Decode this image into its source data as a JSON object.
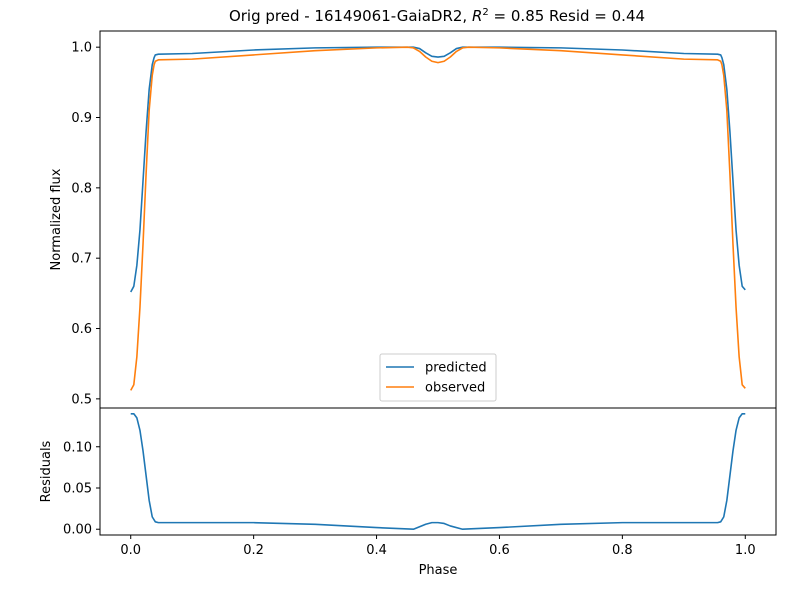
{
  "chart_data": [
    {
      "type": "line",
      "title_prefix": "Orig pred - 16149061-GaiaDR2, ",
      "title_r2_symbol": "R",
      "title_r2_exp": "2",
      "title_r2_value": " = 0.85 Resid = 0.44",
      "xlabel": "",
      "ylabel": "Normalized flux",
      "xlim": [
        -0.05,
        1.05
      ],
      "ylim": [
        0.487,
        1.023
      ],
      "yticks": [
        0.5,
        0.6,
        0.7,
        0.8,
        0.9,
        1.0
      ],
      "ytick_labels": [
        "0.5",
        "0.6",
        "0.7",
        "0.8",
        "0.9",
        "1.0"
      ],
      "legend": {
        "placement": "lower-center"
      },
      "series": [
        {
          "name": "predicted",
          "color": "#1f77b4",
          "x": [
            0.0,
            0.005,
            0.01,
            0.015,
            0.02,
            0.025,
            0.03,
            0.035,
            0.038,
            0.04,
            0.045,
            0.1,
            0.2,
            0.3,
            0.4,
            0.45,
            0.46,
            0.47,
            0.48,
            0.49,
            0.5,
            0.51,
            0.52,
            0.53,
            0.54,
            0.55,
            0.6,
            0.7,
            0.8,
            0.9,
            0.955,
            0.96,
            0.962,
            0.965,
            0.97,
            0.975,
            0.98,
            0.985,
            0.99,
            0.995,
            1.0
          ],
          "values": [
            0.652,
            0.66,
            0.69,
            0.74,
            0.81,
            0.88,
            0.94,
            0.975,
            0.985,
            0.989,
            0.99,
            0.991,
            0.996,
            0.999,
            1.0,
            1.0,
            1.0,
            0.998,
            0.992,
            0.987,
            0.986,
            0.987,
            0.992,
            0.998,
            1.0,
            1.0,
            1.0,
            0.999,
            0.996,
            0.991,
            0.99,
            0.989,
            0.985,
            0.975,
            0.94,
            0.88,
            0.81,
            0.74,
            0.69,
            0.66,
            0.655
          ]
        },
        {
          "name": "observed",
          "color": "#ff7f0e",
          "x": [
            0.0,
            0.005,
            0.01,
            0.015,
            0.02,
            0.025,
            0.03,
            0.035,
            0.038,
            0.04,
            0.045,
            0.1,
            0.2,
            0.3,
            0.4,
            0.45,
            0.46,
            0.47,
            0.48,
            0.49,
            0.5,
            0.51,
            0.52,
            0.53,
            0.54,
            0.55,
            0.6,
            0.7,
            0.8,
            0.9,
            0.955,
            0.96,
            0.962,
            0.965,
            0.97,
            0.975,
            0.98,
            0.985,
            0.99,
            0.995,
            1.0
          ],
          "values": [
            0.512,
            0.52,
            0.56,
            0.63,
            0.72,
            0.82,
            0.91,
            0.96,
            0.975,
            0.98,
            0.982,
            0.983,
            0.989,
            0.995,
            0.999,
            1.0,
            0.999,
            0.994,
            0.986,
            0.98,
            0.978,
            0.98,
            0.986,
            0.994,
            0.999,
            1.0,
            0.999,
            0.995,
            0.989,
            0.983,
            0.982,
            0.98,
            0.975,
            0.96,
            0.91,
            0.82,
            0.72,
            0.63,
            0.56,
            0.52,
            0.515
          ]
        }
      ]
    },
    {
      "type": "line",
      "xlabel": "Phase",
      "ylabel": "Residuals",
      "xlim": [
        -0.05,
        1.05
      ],
      "ylim": [
        -0.007,
        0.147
      ],
      "xticks": [
        0.0,
        0.2,
        0.4,
        0.6,
        0.8,
        1.0
      ],
      "xtick_labels": [
        "0.0",
        "0.2",
        "0.4",
        "0.6",
        "0.8",
        "1.0"
      ],
      "yticks": [
        0.0,
        0.05,
        0.1
      ],
      "ytick_labels": [
        "0.00",
        "0.05",
        "0.10"
      ],
      "series": [
        {
          "color": "#1f77b4",
          "x": [
            0.0,
            0.005,
            0.01,
            0.015,
            0.02,
            0.025,
            0.03,
            0.035,
            0.04,
            0.045,
            0.1,
            0.2,
            0.3,
            0.4,
            0.46,
            0.48,
            0.49,
            0.5,
            0.51,
            0.52,
            0.54,
            0.6,
            0.7,
            0.8,
            0.9,
            0.955,
            0.96,
            0.965,
            0.97,
            0.975,
            0.98,
            0.985,
            0.99,
            0.995,
            1.0
          ],
          "values": [
            0.14,
            0.14,
            0.135,
            0.12,
            0.095,
            0.065,
            0.035,
            0.015,
            0.009,
            0.008,
            0.008,
            0.008,
            0.006,
            0.002,
            0.0,
            0.006,
            0.008,
            0.008,
            0.007,
            0.004,
            0.0,
            0.002,
            0.006,
            0.008,
            0.008,
            0.008,
            0.009,
            0.015,
            0.035,
            0.065,
            0.095,
            0.12,
            0.135,
            0.14,
            0.14
          ]
        }
      ]
    }
  ]
}
